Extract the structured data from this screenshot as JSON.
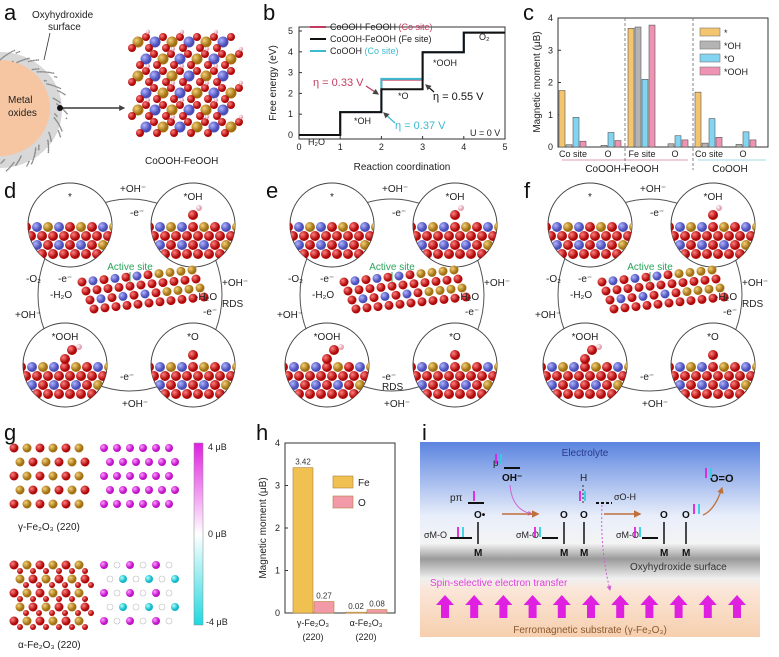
{
  "panel_labels": [
    "a",
    "b",
    "c",
    "d",
    "e",
    "f",
    "g",
    "h",
    "i"
  ],
  "panel_a": {
    "surface_label_1": "Oxyhydroxide",
    "surface_label_2": "surface",
    "core_label_1": "Metal",
    "core_label_2": "oxides",
    "structure_label": "CoOOH-FeOOH"
  },
  "chart_data": [
    {
      "panel": "b",
      "type": "line",
      "step": true,
      "xlabel": "Reaction coordination",
      "ylabel": "Free energy (eV)",
      "xlim": [
        0,
        5
      ],
      "ylim": [
        0,
        5
      ],
      "xticks": [
        0,
        1,
        2,
        3,
        4,
        5
      ],
      "yticks": [
        0,
        1,
        2,
        3,
        4,
        5
      ],
      "series": [
        {
          "name": "CoOOH-FeOOH",
          "site": "(Co site)",
          "color": "#c23b5c",
          "values": [
            0,
            1.1,
            2.66,
            3.98,
            4.92
          ]
        },
        {
          "name": "CoOOH-FeOOH",
          "site": "(Fe site)",
          "color": "#111111",
          "values": [
            0,
            1.1,
            2.2,
            3.98,
            4.92
          ]
        },
        {
          "name": "CoOOH",
          "site": "(Co site)",
          "color": "#3bbad0",
          "values": [
            0,
            1.1,
            2.7,
            3.98,
            4.92
          ]
        }
      ],
      "state_labels": [
        "H₂O",
        "*OH",
        "*O",
        "*OOH",
        "O₂"
      ],
      "annotations": {
        "eta_co": "η = 0.33 V",
        "eta_fe": "η = 0.55 V",
        "eta_cooh": "η = 0.37 V",
        "potential": "U = 0 V"
      }
    },
    {
      "panel": "c",
      "type": "bar",
      "ylabel": "Magnetic moment (μB)",
      "ylim": [
        0,
        4
      ],
      "yticks": [
        0,
        1,
        2,
        3,
        4
      ],
      "categories": [
        "Co site",
        "O",
        "Fe site",
        "O",
        "Co site",
        "O"
      ],
      "category_colors": [
        "#c23b5c",
        "#333333",
        "#333333",
        "#333333",
        "#3bbad0",
        "#333333"
      ],
      "groups": [
        "CoOOH-FeOOH",
        "CoOOH"
      ],
      "series": [
        {
          "name": "*",
          "color": "#f3c56e",
          "values": [
            1.75,
            0.0,
            3.68,
            0.0,
            1.7,
            0.0
          ]
        },
        {
          "name": "*OH",
          "color": "#b4b4b4",
          "values": [
            0.07,
            0.05,
            3.72,
            0.1,
            0.12,
            0.08
          ]
        },
        {
          "name": "*O",
          "color": "#82d4f0",
          "values": [
            0.92,
            0.45,
            2.1,
            0.35,
            0.88,
            0.47
          ]
        },
        {
          "name": "*OOH",
          "color": "#ef93b4",
          "values": [
            0.18,
            0.2,
            3.78,
            0.22,
            0.3,
            0.22
          ]
        }
      ],
      "legend_position": "top-right"
    },
    {
      "panel": "h",
      "type": "bar",
      "ylabel": "Magnetic moment (μB)",
      "ylim": [
        0,
        4
      ],
      "yticks": [
        0,
        1,
        2,
        3,
        4
      ],
      "categories": [
        "γ-Fe₂O₃",
        "α-Fe₂O₃"
      ],
      "category_sub": [
        "(220)",
        "(220)"
      ],
      "series": [
        {
          "name": "Fe",
          "color": "#f0c050",
          "values": [
            3.42,
            0.02
          ],
          "labels": [
            "3.42",
            "0.02"
          ]
        },
        {
          "name": "O",
          "color": "#f29aa8",
          "values": [
            0.27,
            0.08
          ],
          "labels": [
            "0.27",
            "0.08"
          ]
        }
      ],
      "legend_position": "top-right"
    }
  ],
  "cycles": {
    "d": {
      "states": [
        "*",
        "*OH",
        "*O",
        "*OOH"
      ],
      "active": "Active site",
      "rds": "RDS",
      "top_add": "+OH⁻",
      "top_e": "-e⁻",
      "right_add": "+OH⁻",
      "right_h2o": "-H₂O",
      "right_e": "-e⁻",
      "bottom_add": "+OH⁻",
      "bottom_e": "-e⁻",
      "left_o2": "-O₂",
      "left_e": "-e⁻",
      "left_h2o": "-H₂O",
      "left_add": "+OH⁻"
    },
    "e": {
      "states": [
        "*",
        "*OH",
        "*O",
        "*OOH"
      ],
      "active": "Active site",
      "rds": "RDS",
      "top_add": "+OH⁻",
      "top_e": "-e⁻",
      "right_add": "+OH⁻",
      "right_h2o": "-H₂O",
      "right_e": "-e⁻",
      "bottom_add": "+OH⁻",
      "bottom_e": "-e⁻",
      "left_o2": "-O₂",
      "left_e": "-e⁻",
      "left_h2o": "-H₂O",
      "left_add": "+OH⁻"
    },
    "f": {
      "states": [
        "*",
        "*OH",
        "*O",
        "*OOH"
      ],
      "active": "Active site",
      "rds": "RDS",
      "top_add": "+OH⁻",
      "top_e": "-e⁻",
      "right_add": "+OH⁻",
      "right_h2o": "-H₂O",
      "right_e": "-e⁻",
      "bottom_add": "+OH⁻",
      "bottom_e": "-e⁻",
      "left_o2": "-O₂",
      "left_e": "-e⁻",
      "left_h2o": "-H₂O",
      "left_add": "+OH⁻"
    }
  },
  "colors": {
    "oxygen": "#d01818",
    "cobalt": "#6b6fd6",
    "iron": "#c9952a",
    "hydrogen": "#f4d0d8",
    "active": "#2aa35a",
    "rds": "#c94a6e",
    "spin_up": "#e020e0",
    "spin_down": "#30d0e0"
  },
  "panel_g": {
    "gamma_label": "γ-Fe₂O₃ (220)",
    "alpha_label": "α-Fe₂O₃ (220)",
    "colorbar": [
      "4 μB",
      "0 μB",
      "-4 μB"
    ]
  },
  "panel_i": {
    "electrolyte": "Electrolyte",
    "p": "p",
    "oh": "OH⁻",
    "h": "H",
    "sigma_oh": "σO-H",
    "o2": "O=O",
    "p_pi": "pπ",
    "o_radical": "O•",
    "o": "O",
    "m": "M",
    "sigma_mo": "σM-O",
    "surface": "Oxyhydroxide surface",
    "transfer": "Spin-selective electron transfer",
    "substrate": "Ferromagnetic substrate (γ-Fe₂O₃)"
  }
}
